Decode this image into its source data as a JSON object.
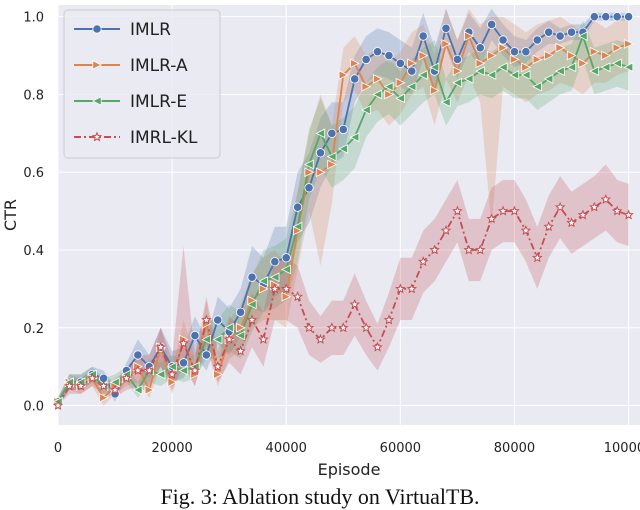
{
  "caption": "Fig. 3: Ablation study on VirtualTB.",
  "chart_data": {
    "type": "line",
    "title": "",
    "xlabel": "Episode",
    "ylabel": "CTR",
    "xlim": [
      0,
      102000
    ],
    "ylim": [
      -0.05,
      1.03
    ],
    "xticks": [
      0,
      20000,
      40000,
      60000,
      80000,
      100000
    ],
    "yticks": [
      0.0,
      0.2,
      0.4,
      0.6,
      0.8,
      1.0
    ],
    "grid": true,
    "legend_position": "top-left",
    "shaded_confidence_band": true,
    "x": [
      0,
      2000,
      4000,
      6000,
      8000,
      10000,
      12000,
      14000,
      16000,
      18000,
      20000,
      22000,
      24000,
      26000,
      28000,
      30000,
      32000,
      34000,
      36000,
      38000,
      40000,
      42000,
      44000,
      46000,
      48000,
      50000,
      52000,
      54000,
      56000,
      58000,
      60000,
      62000,
      64000,
      66000,
      68000,
      70000,
      72000,
      74000,
      76000,
      78000,
      80000,
      82000,
      84000,
      86000,
      88000,
      90000,
      92000,
      94000,
      96000,
      98000,
      100000
    ],
    "series": [
      {
        "name": "IMLR",
        "color": "#4c72b0",
        "marker": "circle",
        "values": [
          0.01,
          0.06,
          0.06,
          0.08,
          0.07,
          0.03,
          0.09,
          0.13,
          0.1,
          0.15,
          0.1,
          0.11,
          0.18,
          0.13,
          0.22,
          0.19,
          0.24,
          0.33,
          0.31,
          0.37,
          0.38,
          0.51,
          0.56,
          0.65,
          0.7,
          0.71,
          0.84,
          0.89,
          0.91,
          0.9,
          0.88,
          0.86,
          0.95,
          0.86,
          0.97,
          0.89,
          0.96,
          0.92,
          0.98,
          0.94,
          0.91,
          0.91,
          0.94,
          0.96,
          0.95,
          0.96,
          0.96,
          1.0,
          1.0,
          1.0,
          1.0
        ],
        "lower": [
          0.0,
          0.04,
          0.04,
          0.06,
          0.05,
          0.01,
          0.07,
          0.09,
          0.07,
          0.1,
          0.06,
          0.07,
          0.13,
          0.09,
          0.16,
          0.13,
          0.18,
          0.25,
          0.24,
          0.28,
          0.3,
          0.42,
          0.47,
          0.56,
          0.62,
          0.64,
          0.78,
          0.83,
          0.85,
          0.84,
          0.82,
          0.8,
          0.89,
          0.8,
          0.92,
          0.84,
          0.91,
          0.87,
          0.94,
          0.9,
          0.87,
          0.88,
          0.91,
          0.93,
          0.93,
          0.94,
          0.94,
          0.99,
          0.99,
          0.99,
          0.99
        ],
        "upper": [
          0.02,
          0.08,
          0.08,
          0.1,
          0.09,
          0.05,
          0.11,
          0.17,
          0.13,
          0.2,
          0.14,
          0.15,
          0.23,
          0.17,
          0.28,
          0.25,
          0.3,
          0.41,
          0.38,
          0.46,
          0.46,
          0.6,
          0.65,
          0.74,
          0.78,
          0.78,
          0.9,
          0.95,
          0.97,
          0.96,
          0.94,
          0.92,
          1.01,
          0.92,
          1.02,
          0.94,
          1.01,
          0.97,
          1.02,
          0.98,
          0.95,
          0.94,
          0.97,
          0.99,
          0.97,
          0.98,
          0.98,
          1.01,
          1.01,
          1.01,
          1.01
        ]
      },
      {
        "name": "IMLR-A",
        "color": "#dd8452",
        "marker": "triangle-right",
        "values": [
          0.01,
          0.06,
          0.05,
          0.07,
          0.02,
          0.05,
          0.07,
          0.1,
          0.04,
          0.15,
          0.06,
          0.17,
          0.08,
          0.21,
          0.08,
          0.17,
          0.2,
          0.27,
          0.3,
          0.31,
          0.28,
          0.45,
          0.6,
          0.6,
          0.62,
          0.85,
          0.88,
          0.82,
          0.84,
          0.8,
          0.83,
          0.88,
          0.9,
          0.81,
          0.93,
          0.86,
          0.95,
          0.88,
          0.9,
          0.92,
          0.89,
          0.87,
          0.89,
          0.9,
          0.92,
          0.9,
          0.88,
          0.91,
          0.9,
          0.92,
          0.93
        ],
        "lower": [
          0.0,
          0.04,
          0.03,
          0.05,
          0.0,
          0.03,
          0.05,
          0.06,
          0.02,
          0.1,
          0.03,
          0.12,
          0.05,
          0.15,
          0.05,
          0.12,
          0.14,
          0.2,
          0.22,
          0.22,
          0.2,
          0.35,
          0.5,
          0.36,
          0.52,
          0.78,
          0.81,
          0.75,
          0.76,
          0.72,
          0.75,
          0.8,
          0.82,
          0.72,
          0.84,
          0.78,
          0.85,
          0.78,
          0.46,
          0.82,
          0.8,
          0.78,
          0.8,
          0.81,
          0.83,
          0.82,
          0.8,
          0.83,
          0.83,
          0.85,
          0.86
        ],
        "upper": [
          0.02,
          0.08,
          0.07,
          0.09,
          0.04,
          0.07,
          0.09,
          0.14,
          0.07,
          0.2,
          0.09,
          0.22,
          0.12,
          0.27,
          0.11,
          0.22,
          0.26,
          0.34,
          0.38,
          0.4,
          0.36,
          0.55,
          0.7,
          0.8,
          0.72,
          0.92,
          0.95,
          0.9,
          0.92,
          0.88,
          0.91,
          0.96,
          0.98,
          0.9,
          1.02,
          0.94,
          1.02,
          0.98,
          1.0,
          1.0,
          0.98,
          0.96,
          0.98,
          0.99,
          1.0,
          0.98,
          0.96,
          0.99,
          0.97,
          0.99,
          1.0
        ]
      },
      {
        "name": "IMLR-E",
        "color": "#55a868",
        "marker": "triangle-left",
        "values": [
          0.01,
          0.06,
          0.06,
          0.08,
          0.05,
          0.06,
          0.08,
          0.04,
          0.09,
          0.08,
          0.1,
          0.09,
          0.1,
          0.17,
          0.17,
          0.2,
          0.18,
          0.26,
          0.32,
          0.33,
          0.35,
          0.46,
          0.62,
          0.7,
          0.64,
          0.66,
          0.69,
          0.76,
          0.8,
          0.82,
          0.79,
          0.82,
          0.85,
          0.87,
          0.78,
          0.83,
          0.84,
          0.86,
          0.85,
          0.87,
          0.85,
          0.85,
          0.82,
          0.84,
          0.86,
          0.87,
          0.95,
          0.86,
          0.87,
          0.88,
          0.87
        ],
        "lower": [
          0.0,
          0.04,
          0.04,
          0.06,
          0.03,
          0.04,
          0.06,
          0.02,
          0.06,
          0.05,
          0.07,
          0.06,
          0.07,
          0.12,
          0.12,
          0.14,
          0.12,
          0.19,
          0.24,
          0.25,
          0.27,
          0.37,
          0.53,
          0.61,
          0.56,
          0.58,
          0.61,
          0.69,
          0.73,
          0.75,
          0.72,
          0.75,
          0.78,
          0.8,
          0.72,
          0.77,
          0.78,
          0.8,
          0.79,
          0.81,
          0.79,
          0.79,
          0.76,
          0.78,
          0.8,
          0.81,
          0.89,
          0.8,
          0.81,
          0.82,
          0.81
        ],
        "upper": [
          0.02,
          0.08,
          0.08,
          0.1,
          0.07,
          0.08,
          0.1,
          0.06,
          0.12,
          0.11,
          0.13,
          0.12,
          0.13,
          0.22,
          0.22,
          0.26,
          0.24,
          0.33,
          0.4,
          0.41,
          0.43,
          0.55,
          0.71,
          0.79,
          0.72,
          0.74,
          0.77,
          0.83,
          0.87,
          0.89,
          0.86,
          0.89,
          0.92,
          0.94,
          0.84,
          0.89,
          0.9,
          0.92,
          0.91,
          0.93,
          0.91,
          0.91,
          0.88,
          0.9,
          0.92,
          0.93,
          0.99,
          0.92,
          0.93,
          0.94,
          0.93
        ]
      },
      {
        "name": "IMRL-KL",
        "color": "#c44e52",
        "marker": "star",
        "values": [
          0.0,
          0.05,
          0.05,
          0.07,
          0.05,
          0.04,
          0.07,
          0.09,
          0.09,
          0.15,
          0.08,
          0.16,
          0.09,
          0.22,
          0.1,
          0.17,
          0.14,
          0.22,
          0.17,
          0.3,
          0.3,
          0.28,
          0.2,
          0.17,
          0.2,
          0.2,
          0.26,
          0.2,
          0.15,
          0.22,
          0.3,
          0.3,
          0.37,
          0.4,
          0.45,
          0.5,
          0.4,
          0.4,
          0.48,
          0.5,
          0.5,
          0.45,
          0.38,
          0.46,
          0.51,
          0.47,
          0.49,
          0.51,
          0.53,
          0.5,
          0.49
        ],
        "lower": [
          0.0,
          0.03,
          0.03,
          0.05,
          0.03,
          0.02,
          0.04,
          0.05,
          0.05,
          0.1,
          0.04,
          0.1,
          0.05,
          0.16,
          0.06,
          0.11,
          0.08,
          0.15,
          0.1,
          0.22,
          0.22,
          0.2,
          0.13,
          0.11,
          0.13,
          0.13,
          0.18,
          0.13,
          0.09,
          0.15,
          0.22,
          0.22,
          0.29,
          0.32,
          0.37,
          0.42,
          0.32,
          0.32,
          0.4,
          0.42,
          0.42,
          0.37,
          0.3,
          0.38,
          0.43,
          0.39,
          0.41,
          0.43,
          0.45,
          0.42,
          0.41
        ],
        "upper": [
          0.01,
          0.07,
          0.07,
          0.09,
          0.07,
          0.06,
          0.1,
          0.13,
          0.13,
          0.2,
          0.12,
          0.41,
          0.13,
          0.28,
          0.14,
          0.23,
          0.2,
          0.29,
          0.24,
          0.38,
          0.38,
          0.36,
          0.27,
          0.23,
          0.27,
          0.27,
          0.34,
          0.27,
          0.21,
          0.29,
          0.38,
          0.38,
          0.45,
          0.48,
          0.53,
          0.58,
          0.48,
          0.48,
          0.56,
          0.58,
          0.58,
          0.53,
          0.46,
          0.54,
          0.59,
          0.55,
          0.57,
          0.59,
          0.62,
          0.58,
          0.57
        ]
      }
    ]
  }
}
